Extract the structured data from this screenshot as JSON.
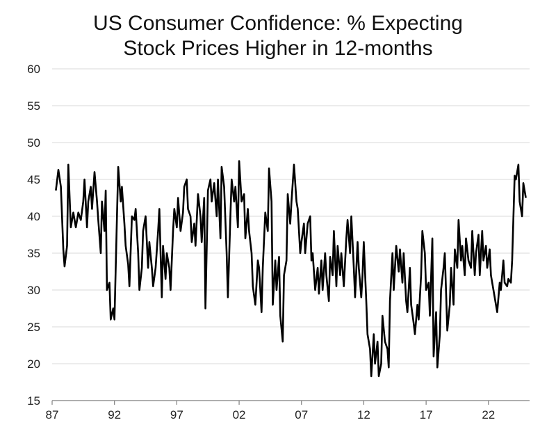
{
  "chart_data": {
    "type": "line",
    "title": [
      "US Consumer Confidence: % Expecting",
      "Stock Prices Higher in 12-months"
    ],
    "xlabel": "",
    "ylabel": "",
    "ylim": [
      15,
      60
    ],
    "xlim": [
      1987,
      2025.3
    ],
    "y_ticks": [
      15,
      20,
      25,
      30,
      35,
      40,
      45,
      50,
      55,
      60
    ],
    "x_ticks": [
      {
        "value": 1987,
        "label": "87"
      },
      {
        "value": 1992,
        "label": "92"
      },
      {
        "value": 1997,
        "label": "97"
      },
      {
        "value": 2002,
        "label": "02"
      },
      {
        "value": 2007,
        "label": "07"
      },
      {
        "value": 2012,
        "label": "12"
      },
      {
        "value": 2017,
        "label": "17"
      },
      {
        "value": 2022,
        "label": "22"
      }
    ],
    "grid": "horizontal",
    "line_color": "#000000",
    "series": [
      {
        "points": [
          [
            1987.3,
            43.5
          ],
          [
            1987.5,
            46.3
          ],
          [
            1987.7,
            44.0
          ],
          [
            1987.9,
            35.5
          ],
          [
            1988.0,
            33.2
          ],
          [
            1988.2,
            36.0
          ],
          [
            1988.3,
            47.0
          ],
          [
            1988.5,
            38.5
          ],
          [
            1988.7,
            40.5
          ],
          [
            1988.9,
            38.5
          ],
          [
            1989.1,
            40.5
          ],
          [
            1989.3,
            39.5
          ],
          [
            1989.5,
            42.0
          ],
          [
            1989.6,
            45.0
          ],
          [
            1989.8,
            38.5
          ],
          [
            1989.9,
            42.0
          ],
          [
            1990.1,
            44.0
          ],
          [
            1990.2,
            41.0
          ],
          [
            1990.4,
            46.0
          ],
          [
            1990.6,
            42.0
          ],
          [
            1990.7,
            39.5
          ],
          [
            1990.9,
            35.0
          ],
          [
            1991.0,
            42.0
          ],
          [
            1991.2,
            38.0
          ],
          [
            1991.3,
            43.5
          ],
          [
            1991.4,
            30.0
          ],
          [
            1991.6,
            31.0
          ],
          [
            1991.7,
            26.0
          ],
          [
            1991.9,
            27.5
          ],
          [
            1992.0,
            26.0
          ],
          [
            1992.2,
            40.0
          ],
          [
            1992.3,
            46.7
          ],
          [
            1992.5,
            42.0
          ],
          [
            1992.6,
            44.0
          ],
          [
            1992.8,
            39.0
          ],
          [
            1992.9,
            36.0
          ],
          [
            1993.1,
            33.5
          ],
          [
            1993.2,
            30.5
          ],
          [
            1993.4,
            40.0
          ],
          [
            1993.6,
            39.5
          ],
          [
            1993.7,
            41.0
          ],
          [
            1993.9,
            35.0
          ],
          [
            1994.0,
            30.0
          ],
          [
            1994.2,
            33.0
          ],
          [
            1994.3,
            38.0
          ],
          [
            1994.5,
            40.0
          ],
          [
            1994.7,
            33.0
          ],
          [
            1994.8,
            36.5
          ],
          [
            1995.0,
            33.0
          ],
          [
            1995.1,
            30.5
          ],
          [
            1995.3,
            33.0
          ],
          [
            1995.5,
            38.0
          ],
          [
            1995.6,
            41.0
          ],
          [
            1995.8,
            29.0
          ],
          [
            1995.9,
            36.0
          ],
          [
            1996.1,
            31.5
          ],
          [
            1996.2,
            35.0
          ],
          [
            1996.4,
            33.0
          ],
          [
            1996.5,
            30.0
          ],
          [
            1996.7,
            38.0
          ],
          [
            1996.8,
            41.0
          ],
          [
            1997.0,
            38.5
          ],
          [
            1997.1,
            42.5
          ],
          [
            1997.3,
            38.0
          ],
          [
            1997.5,
            40.5
          ],
          [
            1997.6,
            44.0
          ],
          [
            1997.8,
            45.0
          ],
          [
            1997.9,
            41.0
          ],
          [
            1998.1,
            40.0
          ],
          [
            1998.2,
            36.5
          ],
          [
            1998.4,
            39.0
          ],
          [
            1998.5,
            36.0
          ],
          [
            1998.7,
            43.0
          ],
          [
            1998.9,
            40.0
          ],
          [
            1999.0,
            36.5
          ],
          [
            1999.2,
            42.5
          ],
          [
            1999.3,
            27.5
          ],
          [
            1999.5,
            43.5
          ],
          [
            1999.7,
            45.0
          ],
          [
            1999.8,
            42.0
          ],
          [
            2000.0,
            44.5
          ],
          [
            2000.2,
            40.0
          ],
          [
            2000.3,
            45.0
          ],
          [
            2000.5,
            37.0
          ],
          [
            2000.6,
            46.7
          ],
          [
            2000.8,
            44.0
          ],
          [
            2001.0,
            35.0
          ],
          [
            2001.1,
            29.0
          ],
          [
            2001.3,
            40.0
          ],
          [
            2001.4,
            45.0
          ],
          [
            2001.6,
            42.0
          ],
          [
            2001.7,
            44.0
          ],
          [
            2001.9,
            38.5
          ],
          [
            2002.0,
            47.5
          ],
          [
            2002.2,
            42.0
          ],
          [
            2002.4,
            43.0
          ],
          [
            2002.5,
            37.0
          ],
          [
            2002.7,
            41.0
          ],
          [
            2002.8,
            38.0
          ],
          [
            2003.0,
            35.0
          ],
          [
            2003.1,
            30.5
          ],
          [
            2003.3,
            28.0
          ],
          [
            2003.5,
            34.0
          ],
          [
            2003.6,
            33.0
          ],
          [
            2003.8,
            27.0
          ],
          [
            2003.9,
            33.0
          ],
          [
            2004.1,
            40.5
          ],
          [
            2004.3,
            38.0
          ],
          [
            2004.4,
            46.5
          ],
          [
            2004.6,
            42.0
          ],
          [
            2004.7,
            28.0
          ],
          [
            2004.9,
            34.0
          ],
          [
            2005.0,
            30.0
          ],
          [
            2005.2,
            34.5
          ],
          [
            2005.3,
            26.5
          ],
          [
            2005.5,
            23.0
          ],
          [
            2005.6,
            32.0
          ],
          [
            2005.8,
            34.0
          ],
          [
            2005.9,
            43.0
          ],
          [
            2006.1,
            39.0
          ],
          [
            2006.2,
            42.0
          ],
          [
            2006.4,
            47.0
          ],
          [
            2006.6,
            42.0
          ],
          [
            2006.7,
            41.0
          ],
          [
            2006.9,
            35.0
          ],
          [
            2007.0,
            36.5
          ],
          [
            2007.2,
            39.0
          ],
          [
            2007.3,
            35.0
          ],
          [
            2007.5,
            39.0
          ],
          [
            2007.7,
            40.0
          ],
          [
            2007.8,
            34.0
          ],
          [
            2007.9,
            35.0
          ],
          [
            2008.1,
            30.0
          ],
          [
            2008.3,
            33.0
          ],
          [
            2008.4,
            29.5
          ],
          [
            2008.6,
            34.0
          ],
          [
            2008.7,
            30.0
          ],
          [
            2008.9,
            35.0
          ],
          [
            2009.0,
            32.0
          ],
          [
            2009.2,
            28.5
          ],
          [
            2009.3,
            34.5
          ],
          [
            2009.5,
            32.0
          ],
          [
            2009.6,
            38.0
          ],
          [
            2009.8,
            30.5
          ],
          [
            2009.9,
            36.0
          ],
          [
            2010.1,
            32.0
          ],
          [
            2010.2,
            35.0
          ],
          [
            2010.4,
            30.5
          ],
          [
            2010.6,
            37.0
          ],
          [
            2010.7,
            39.5
          ],
          [
            2010.9,
            35.0
          ],
          [
            2011.0,
            40.0
          ],
          [
            2011.2,
            33.0
          ],
          [
            2011.3,
            29.0
          ],
          [
            2011.5,
            36.5
          ],
          [
            2011.6,
            33.0
          ],
          [
            2011.8,
            29.0
          ],
          [
            2011.9,
            32.0
          ],
          [
            2012.0,
            36.5
          ],
          [
            2012.2,
            28.5
          ],
          [
            2012.3,
            24.0
          ],
          [
            2012.5,
            22.0
          ],
          [
            2012.6,
            18.3
          ],
          [
            2012.8,
            24.0
          ],
          [
            2012.9,
            20.0
          ],
          [
            2013.1,
            23.0
          ],
          [
            2013.2,
            18.3
          ],
          [
            2013.4,
            20.0
          ],
          [
            2013.5,
            26.5
          ],
          [
            2013.7,
            23.0
          ],
          [
            2013.9,
            22.0
          ],
          [
            2014.0,
            19.5
          ],
          [
            2014.1,
            28.5
          ],
          [
            2014.3,
            35.0
          ],
          [
            2014.4,
            30.0
          ],
          [
            2014.6,
            36.0
          ],
          [
            2014.8,
            32.5
          ],
          [
            2014.9,
            35.5
          ],
          [
            2015.1,
            31.0
          ],
          [
            2015.2,
            35.0
          ],
          [
            2015.4,
            28.5
          ],
          [
            2015.5,
            27.0
          ],
          [
            2015.7,
            33.0
          ],
          [
            2015.8,
            28.0
          ],
          [
            2016.0,
            25.5
          ],
          [
            2016.1,
            24.0
          ],
          [
            2016.3,
            28.0
          ],
          [
            2016.4,
            26.0
          ],
          [
            2016.6,
            32.0
          ],
          [
            2016.7,
            38.0
          ],
          [
            2016.9,
            35.0
          ],
          [
            2017.0,
            30.0
          ],
          [
            2017.2,
            31.0
          ],
          [
            2017.3,
            26.5
          ],
          [
            2017.5,
            37.0
          ],
          [
            2017.6,
            21.0
          ],
          [
            2017.8,
            27.0
          ],
          [
            2017.9,
            19.5
          ],
          [
            2018.1,
            24.0
          ],
          [
            2018.2,
            30.0
          ],
          [
            2018.4,
            33.0
          ],
          [
            2018.5,
            35.0
          ],
          [
            2018.7,
            24.5
          ],
          [
            2018.9,
            28.0
          ],
          [
            2019.0,
            33.0
          ],
          [
            2019.2,
            28.0
          ],
          [
            2019.3,
            35.5
          ],
          [
            2019.5,
            33.0
          ],
          [
            2019.6,
            39.5
          ],
          [
            2019.8,
            34.0
          ],
          [
            2019.9,
            36.0
          ],
          [
            2020.1,
            32.0
          ],
          [
            2020.2,
            37.0
          ],
          [
            2020.4,
            34.0
          ],
          [
            2020.6,
            33.0
          ],
          [
            2020.7,
            38.0
          ],
          [
            2020.9,
            32.0
          ],
          [
            2021.0,
            35.0
          ],
          [
            2021.2,
            37.5
          ],
          [
            2021.3,
            32.0
          ],
          [
            2021.5,
            38.0
          ],
          [
            2021.6,
            34.0
          ],
          [
            2021.8,
            36.0
          ],
          [
            2021.9,
            33.0
          ],
          [
            2022.1,
            35.5
          ],
          [
            2022.2,
            32.0
          ],
          [
            2022.4,
            30.0
          ],
          [
            2022.5,
            29.0
          ],
          [
            2022.7,
            27.0
          ],
          [
            2022.9,
            31.0
          ],
          [
            2023.0,
            30.0
          ],
          [
            2023.2,
            34.0
          ],
          [
            2023.3,
            31.0
          ],
          [
            2023.5,
            30.5
          ],
          [
            2023.6,
            31.5
          ],
          [
            2023.8,
            31.0
          ],
          [
            2023.9,
            34.0
          ],
          [
            2024.1,
            45.5
          ],
          [
            2024.2,
            45.0
          ],
          [
            2024.4,
            47.0
          ],
          [
            2024.5,
            42.0
          ],
          [
            2024.7,
            40.0
          ],
          [
            2024.8,
            44.5
          ],
          [
            2025.0,
            42.5
          ]
        ]
      }
    ]
  }
}
